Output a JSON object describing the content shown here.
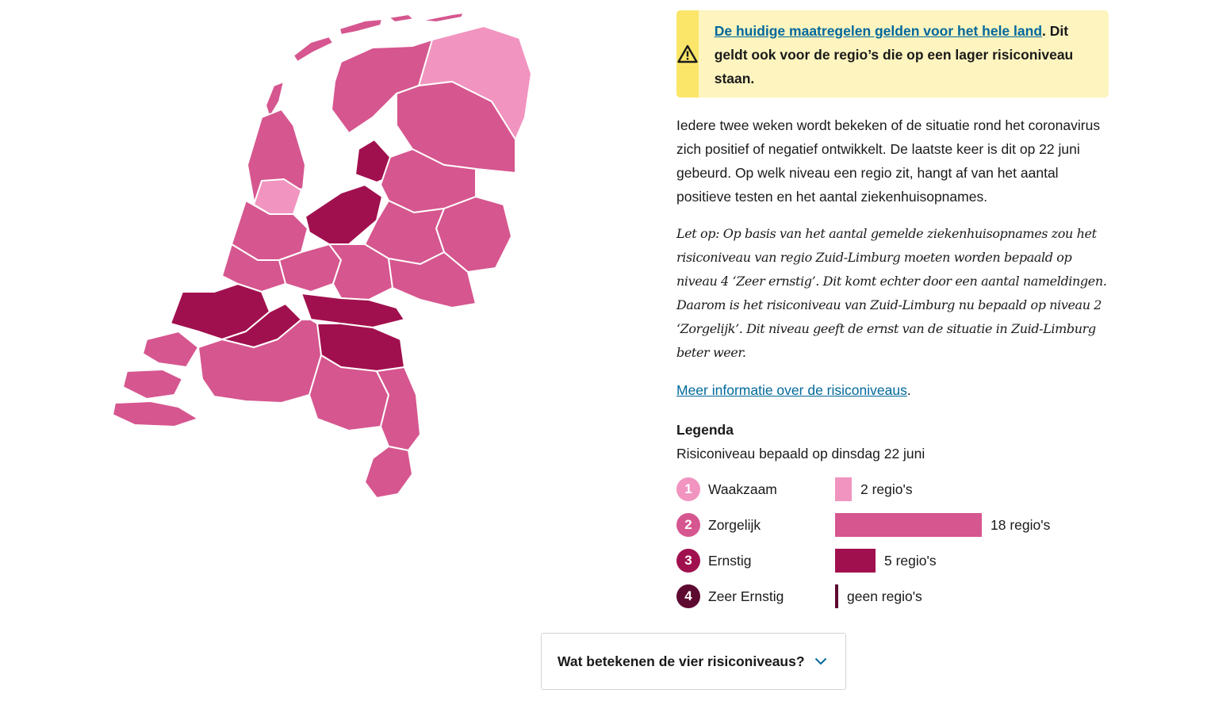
{
  "colors": {
    "level1": "#f194c0",
    "level2": "#d6568f",
    "level3": "#a1104e",
    "level4": "#5d0a30",
    "link": "#01689b",
    "notice_bg": "#fdf4bf",
    "notice_bar": "#fbe66a"
  },
  "notice": {
    "icon": "warning-triangle-icon",
    "link_text": "De huidige maatregelen gelden voor het hele land",
    "trailing": ".",
    "text": "Dit geldt ook voor de regio’s die op een lager risiconiveau staan."
  },
  "intro": "Iedere twee weken wordt bekeken of de situatie rond het coronavirus zich positief of negatief ontwikkelt. De laatste keer is dit op 22 juni gebeurd. Op welk niveau een regio zit, hangt af van het aantal positieve testen en het aantal ziekenhuisopnames.",
  "note": "Let op: Op basis van het aantal gemelde ziekenhuisopnames zou het risiconiveau van regio Zuid-Limburg moeten worden bepaald op niveau 4 ‘Zeer ernstig’. Dit komt echter door een aantal nameldingen. Daarom is het risiconiveau van Zuid-Limburg nu bepaald op niveau 2 ‘Zorgelijk’. Dit niveau geeft de ernst van de situatie in Zuid-Limburg beter weer.",
  "more_info": {
    "link_text": "Meer informatie over de risiconiveaus",
    "trailing": "."
  },
  "legend": {
    "title": "Legenda",
    "subtitle": "Risiconiveau bepaald op dinsdag 22 juni",
    "levels": [
      {
        "number": "1",
        "name": "Waakzaam",
        "count_label": "2 regio's",
        "count": 2,
        "color": "#f194c0"
      },
      {
        "number": "2",
        "name": "Zorgelijk",
        "count_label": "18 regio's",
        "count": 18,
        "color": "#d6568f"
      },
      {
        "number": "3",
        "name": "Ernstig",
        "count_label": "5 regio's",
        "count": 5,
        "color": "#a1104e"
      },
      {
        "number": "4",
        "name": "Zeer Ernstig",
        "count_label": "geen regio's",
        "count": 0,
        "color": "#5d0a30"
      }
    ]
  },
  "accordion": {
    "label": "Wat betekenen de vier risiconiveaus?",
    "icon": "chevron-down-icon"
  }
}
